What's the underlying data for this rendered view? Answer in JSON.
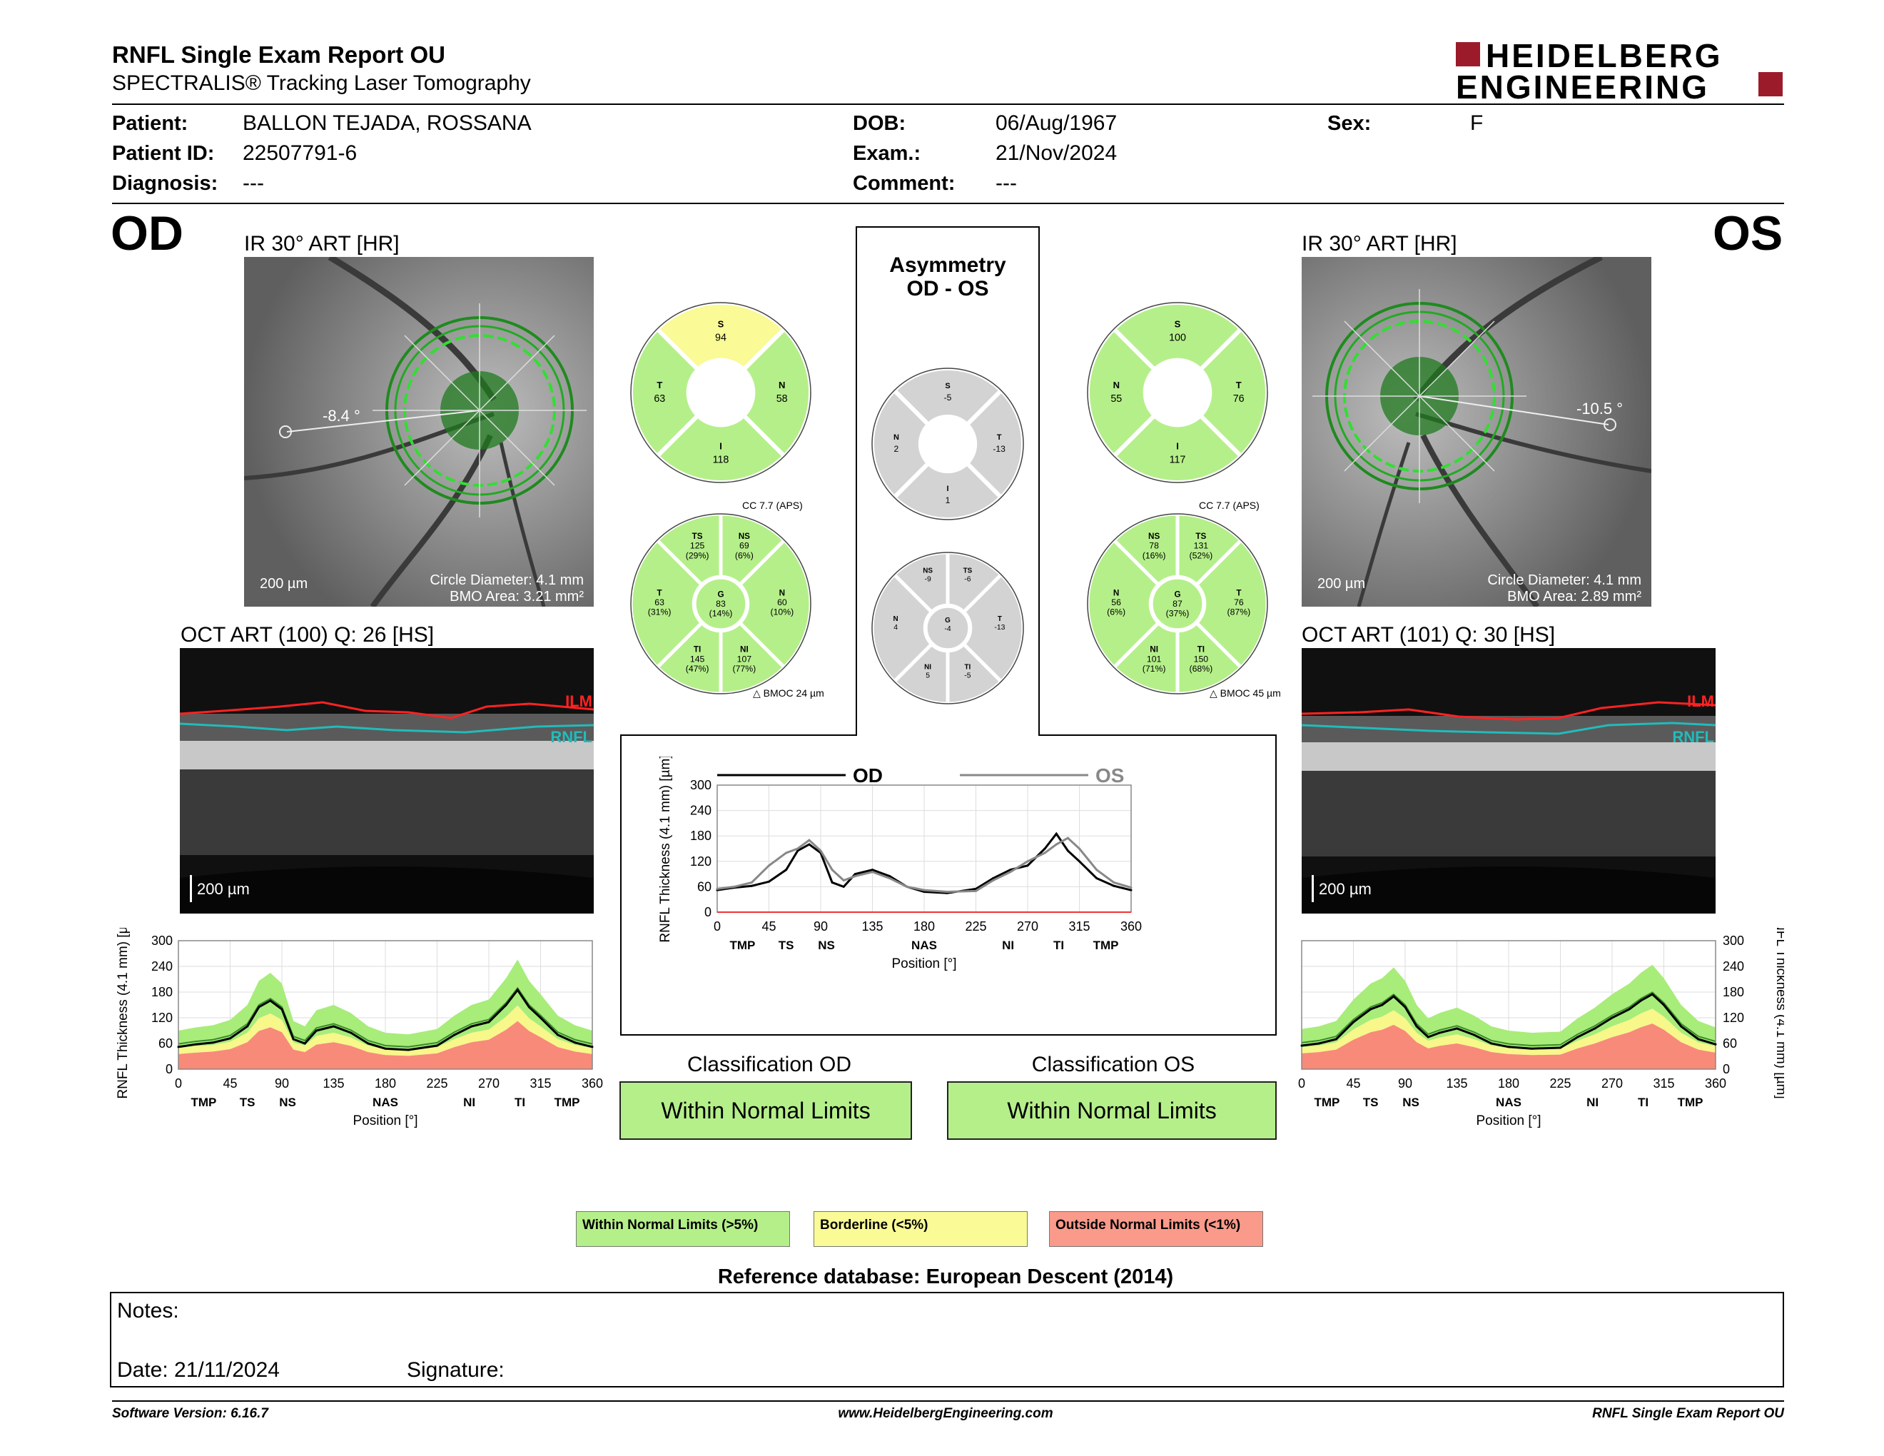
{
  "header": {
    "title": "RNFL Single Exam Report OU",
    "subtitle": "SPECTRALIS® Tracking Laser Tomography",
    "logo_line1": "HEIDELBERG",
    "logo_line2": "ENGINEERING"
  },
  "patient": {
    "patient_label": "Patient:",
    "patient_value": "BALLON TEJADA, ROSSANA",
    "id_label": "Patient ID:",
    "id_value": "22507791-6",
    "diagnosis_label": "Diagnosis:",
    "diagnosis_value": "---",
    "dob_label": "DOB:",
    "dob_value": "06/Aug/1967",
    "exam_label": "Exam.:",
    "exam_value": "21/Nov/2024",
    "comment_label": "Comment:",
    "comment_value": "---",
    "sex_label": "Sex:",
    "sex_value": "F"
  },
  "od": {
    "eye": "OD",
    "ir_title": "IR 30° ART [HR]",
    "angle": "-8.4 °",
    "scale": "200 µm",
    "circle_diameter": "Circle Diameter: 4.1 mm",
    "bmo_area": "BMO Area: 3.21 mm²",
    "oct_title": "OCT ART (100) Q: 26 [HS]",
    "oct_scale": "200 µm",
    "ilm": "ILM",
    "rnfl": "RNFL"
  },
  "os": {
    "eye": "OS",
    "ir_title": "IR 30° ART [HR]",
    "angle": "-10.5 °",
    "scale": "200 µm",
    "circle_diameter": "Circle Diameter: 4.1 mm",
    "bmo_area": "BMO Area: 2.89 mm²",
    "oct_title": "OCT ART (101) Q: 30 [HS]",
    "oct_scale": "200 µm",
    "ilm": "ILM",
    "rnfl": "RNFL"
  },
  "asymmetry": {
    "title1": "Asymmetry",
    "title2": "OD - OS"
  },
  "sectors": {
    "od_quad": {
      "S": "94",
      "T": "63",
      "N": "58",
      "I": "118"
    },
    "os_quad": {
      "S": "100",
      "T": "76",
      "N": "55",
      "I": "117"
    },
    "asym_quad": {
      "S": "-5",
      "T": "-13",
      "N": "2",
      "I": "1"
    },
    "od_cc": "CC 7.7 (APS)",
    "os_cc": "CC 7.7 (APS)",
    "od_bmoc": "BMOC 24 µm",
    "os_bmoc": "BMOC 45 µm",
    "od_six": {
      "TS": "125",
      "TS_p": "(29%)",
      "NS": "69",
      "NS_p": "(6%)",
      "T": "63",
      "T_p": "(31%)",
      "G": "83",
      "G_p": "(14%)",
      "N": "60",
      "N_p": "(10%)",
      "TI": "145",
      "TI_p": "(47%)",
      "NI": "107",
      "NI_p": "(77%)"
    },
    "os_six": {
      "NS": "78",
      "NS_p": "(16%)",
      "TS": "131",
      "TS_p": "(52%)",
      "N": "56",
      "N_p": "(6%)",
      "G": "87",
      "G_p": "(37%)",
      "T": "76",
      "T_p": "(87%)",
      "NI": "101",
      "NI_p": "(71%)",
      "TI": "150",
      "TI_p": "(68%)"
    },
    "asym_six": {
      "NS": "-9",
      "TS": "-6",
      "N": "4",
      "G": "-4",
      "T": "-13",
      "NI": "5",
      "TI": "-5"
    }
  },
  "chart_data": [
    {
      "type": "line",
      "id": "od",
      "ylabel": "RNFL Thickness (4.1 mm) [µm]",
      "xlabel": "Position [°]",
      "ylim": [
        0,
        300
      ],
      "yticks": [
        "0",
        "60",
        "120",
        "180",
        "240",
        "300"
      ],
      "xticks": [
        "0",
        "45",
        "90",
        "135",
        "180",
        "225",
        "270",
        "315",
        "360"
      ],
      "sector_labels": [
        "TMP",
        "TS",
        "NS",
        "NAS",
        "NI",
        "TI",
        "TMP"
      ],
      "x": [
        0,
        15,
        30,
        45,
        60,
        70,
        80,
        90,
        100,
        110,
        120,
        135,
        150,
        165,
        180,
        200,
        225,
        240,
        255,
        270,
        285,
        295,
        305,
        315,
        330,
        345,
        360
      ],
      "series": [
        {
          "values": [
            52,
            58,
            62,
            72,
            100,
            145,
            160,
            140,
            70,
            60,
            90,
            100,
            85,
            60,
            48,
            45,
            55,
            80,
            100,
            110,
            150,
            185,
            145,
            120,
            80,
            62,
            52
          ]
        }
      ]
    },
    {
      "type": "line",
      "id": "ou",
      "ylabel": "RNFL Thickness (4.1 mm) [µm]",
      "xlabel": "Position [°]",
      "ylim": [
        0,
        300
      ],
      "yticks": [
        "0",
        "60",
        "120",
        "180",
        "240",
        "300"
      ],
      "xticks": [
        "0",
        "45",
        "90",
        "135",
        "180",
        "225",
        "270",
        "315",
        "360"
      ],
      "sector_labels": [
        "TMP",
        "TS",
        "NS",
        "NAS",
        "NI",
        "TI",
        "TMP"
      ],
      "series": [
        {
          "name": "OD",
          "values": [
            52,
            58,
            62,
            72,
            100,
            145,
            160,
            140,
            70,
            60,
            90,
            100,
            85,
            60,
            48,
            45,
            55,
            80,
            100,
            110,
            150,
            185,
            145,
            120,
            80,
            62,
            52
          ]
        },
        {
          "name": "OS",
          "values": [
            55,
            60,
            70,
            110,
            140,
            150,
            170,
            145,
            100,
            75,
            85,
            95,
            80,
            60,
            52,
            48,
            50,
            75,
            95,
            120,
            140,
            160,
            175,
            150,
            100,
            70,
            58
          ]
        }
      ]
    },
    {
      "type": "line",
      "id": "os",
      "ylabel": "RNFL Thickness (4.1 mm) [µm]",
      "xlabel": "Position [°]",
      "ylim": [
        0,
        300
      ],
      "yticks": [
        "0",
        "60",
        "120",
        "180",
        "240",
        "300"
      ],
      "xticks": [
        "0",
        "45",
        "90",
        "135",
        "180",
        "225",
        "270",
        "315",
        "360"
      ],
      "sector_labels": [
        "TMP",
        "TS",
        "NS",
        "NAS",
        "NI",
        "TI",
        "TMP"
      ],
      "series": [
        {
          "values": [
            55,
            60,
            70,
            110,
            140,
            150,
            170,
            145,
            100,
            75,
            85,
            95,
            80,
            60,
            52,
            48,
            50,
            75,
            95,
            120,
            140,
            160,
            175,
            150,
            100,
            70,
            58
          ]
        }
      ]
    }
  ],
  "classification": {
    "od_label": "Classification OD",
    "od_value": "Within Normal Limits",
    "os_label": "Classification OS",
    "os_value": "Within Normal Limits"
  },
  "legend": {
    "wnl": "Within Normal Limits (>5%)",
    "bl": "Borderline (<5%)",
    "onl": "Outside Normal Limits (<1%)",
    "colors": {
      "wnl": "#b5ef8a",
      "bl": "#fafa96",
      "onl": "#fa9a8a"
    }
  },
  "reference": "Reference database: European Descent (2014)",
  "notes": {
    "notes_label": "Notes:",
    "date": "Date: 21/11/2024",
    "signature": "Signature:"
  },
  "footer": {
    "software": "Software Version: 6.16.7",
    "website": "www.HeidelbergEngineering.com",
    "report": "RNFL Single Exam Report OU"
  }
}
